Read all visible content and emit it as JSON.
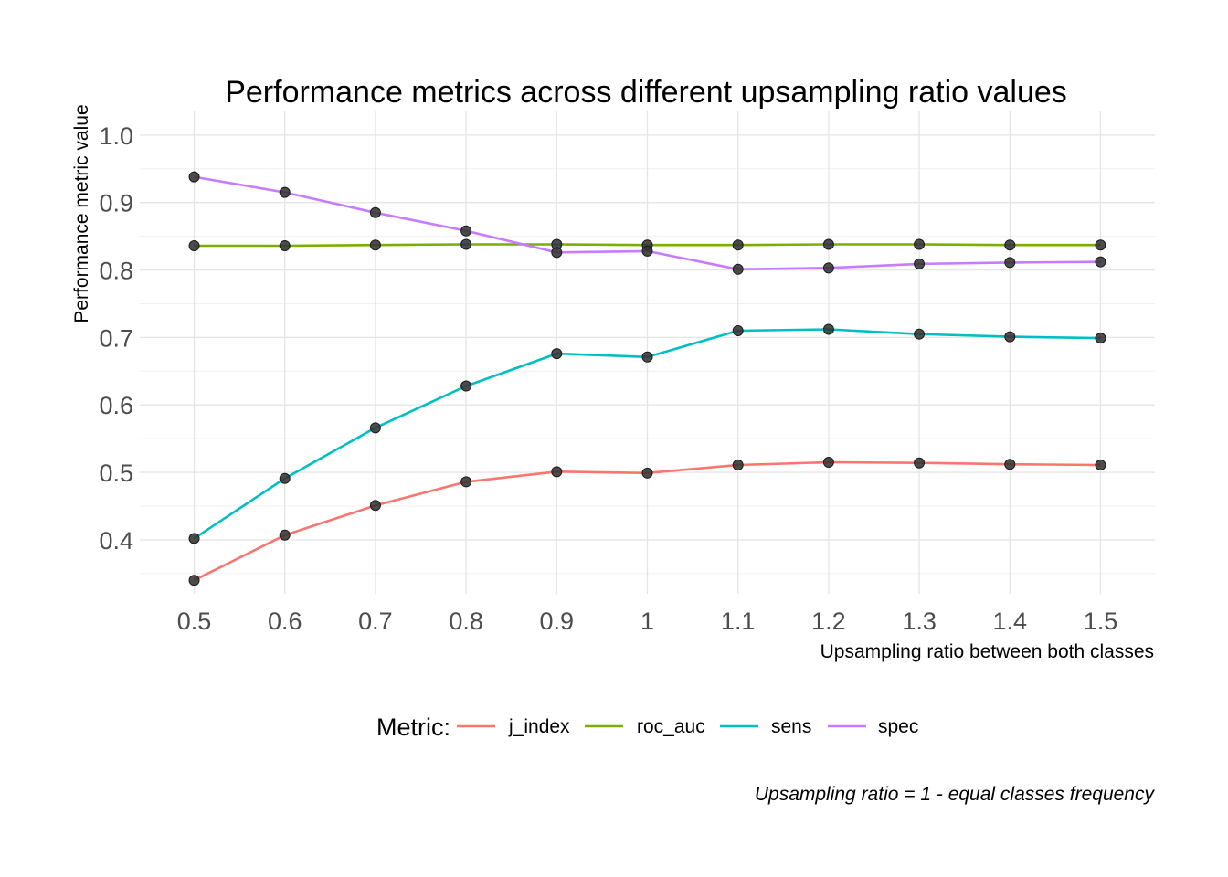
{
  "chart_data": {
    "type": "line",
    "title": "Performance metrics across different upsampling ratio values",
    "xlabel": "Upsampling ratio between both classes",
    "ylabel": "Performance metric value",
    "caption": "Upsampling ratio = 1 - equal classes frequency",
    "legend_title": "Metric:",
    "legend_position": "bottom",
    "grid": true,
    "x": [
      0.5,
      0.6,
      0.7,
      0.8,
      0.9,
      1.0,
      1.1,
      1.2,
      1.3,
      1.4,
      1.5
    ],
    "x_tick_labels": [
      "0.5",
      "0.6",
      "0.7",
      "0.8",
      "0.9",
      "1",
      "1.1",
      "1.2",
      "1.3",
      "1.4",
      "1.5"
    ],
    "y_ticks": [
      0.4,
      0.5,
      0.6,
      0.7,
      0.8,
      0.9,
      1.0
    ],
    "y_tick_labels": [
      "0.4",
      "0.5",
      "0.6",
      "0.7",
      "0.8",
      "0.9",
      "1.0"
    ],
    "xlim": [
      0.44,
      1.56
    ],
    "ylim": [
      0.32,
      1.035
    ],
    "point_color": "#333333",
    "series": [
      {
        "name": "j_index",
        "color": "#F8766D",
        "values": [
          0.34,
          0.407,
          0.451,
          0.486,
          0.501,
          0.499,
          0.511,
          0.515,
          0.514,
          0.512,
          0.511
        ]
      },
      {
        "name": "roc_auc",
        "color": "#7CAE00",
        "values": [
          0.836,
          0.836,
          0.837,
          0.838,
          0.838,
          0.837,
          0.837,
          0.838,
          0.838,
          0.837,
          0.837
        ]
      },
      {
        "name": "sens",
        "color": "#00BFC4",
        "values": [
          0.402,
          0.491,
          0.566,
          0.628,
          0.676,
          0.671,
          0.71,
          0.712,
          0.705,
          0.701,
          0.699
        ]
      },
      {
        "name": "spec",
        "color": "#C77CFF",
        "values": [
          0.938,
          0.915,
          0.885,
          0.858,
          0.826,
          0.828,
          0.801,
          0.803,
          0.809,
          0.811,
          0.812
        ]
      }
    ]
  }
}
